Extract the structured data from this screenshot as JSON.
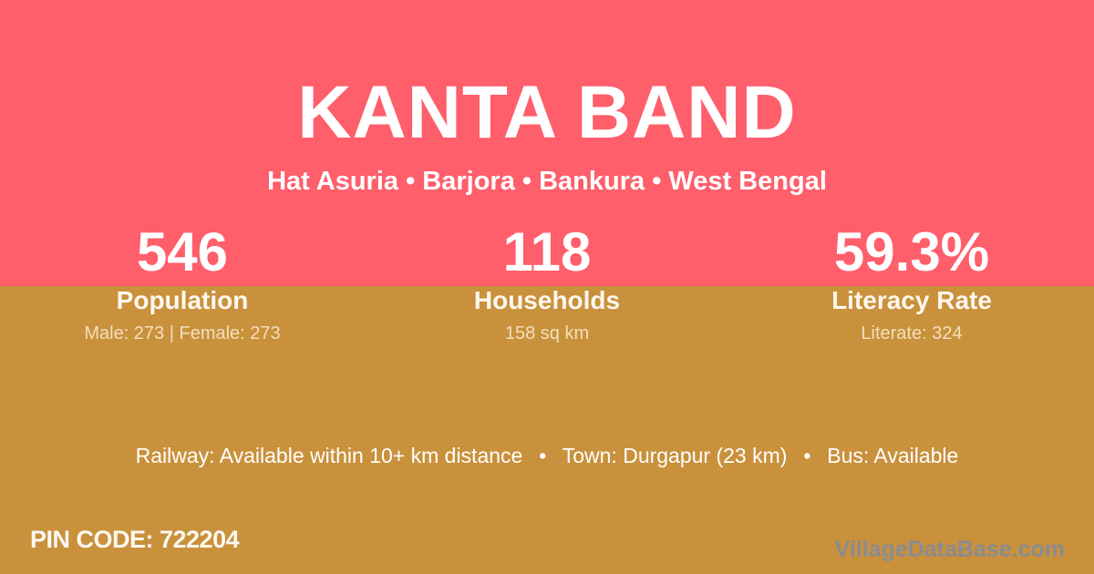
{
  "header": {
    "title": "KANTA BAND",
    "location": "Hat Asuria • Barjora • Bankura • West Bengal"
  },
  "stats": [
    {
      "value": "546",
      "label": "Population",
      "detail": "Male: 273 | Female: 273"
    },
    {
      "value": "118",
      "label": "Households",
      "detail": "158 sq km"
    },
    {
      "value": "59.3%",
      "label": "Literacy Rate",
      "detail": "Literate: 324"
    }
  ],
  "footer": {
    "amenities": "Railway: Available within 10+ km distance  •  Town: Durgapur (23 km)  •  Bus: Available",
    "pin_code": "PIN CODE: 722204",
    "watermark": "VillageDataBase.com"
  },
  "colors": {
    "header_background": "#FF5E6B",
    "body_background": "#C9913C",
    "text_primary": "#FFFFFF",
    "text_muted_cream": "#F3DFBD",
    "watermark_gray": "#8B8B91"
  }
}
